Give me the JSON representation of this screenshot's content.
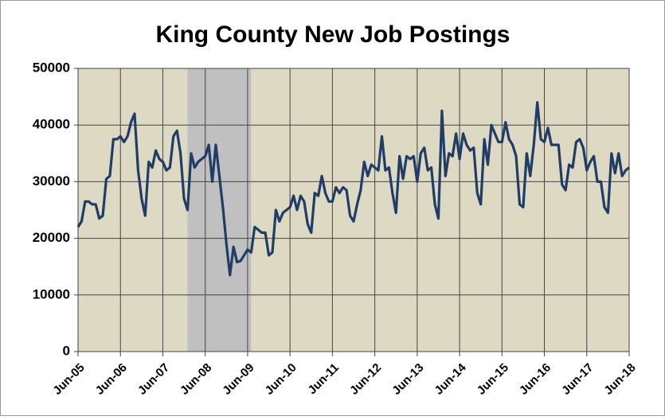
{
  "chart_data": {
    "type": "line",
    "title": "King County New Job Postings",
    "categories": [
      "Jun-05",
      null,
      null,
      null,
      null,
      null,
      null,
      null,
      null,
      null,
      null,
      null,
      "Jun-06",
      null,
      null,
      null,
      null,
      null,
      null,
      null,
      null,
      null,
      null,
      null,
      "Jun-07",
      null,
      null,
      null,
      null,
      null,
      null,
      null,
      null,
      null,
      null,
      null,
      "Jun-08",
      null,
      null,
      null,
      null,
      null,
      null,
      null,
      null,
      null,
      null,
      null,
      "Jun-09",
      null,
      null,
      null,
      null,
      null,
      null,
      null,
      null,
      null,
      null,
      null,
      "Jun-10",
      null,
      null,
      null,
      null,
      null,
      null,
      null,
      null,
      null,
      null,
      null,
      "Jun-11",
      null,
      null,
      null,
      null,
      null,
      null,
      null,
      null,
      null,
      null,
      null,
      "Jun-12",
      null,
      null,
      null,
      null,
      null,
      null,
      null,
      null,
      null,
      null,
      null,
      "Jun-13",
      null,
      null,
      null,
      null,
      null,
      null,
      null,
      null,
      null,
      null,
      null,
      "Jun-14",
      null,
      null,
      null,
      null,
      null,
      null,
      null,
      null,
      null,
      null,
      null,
      "Jun-15",
      null,
      null,
      null,
      null,
      null,
      null,
      null,
      null,
      null,
      null,
      null,
      "Jun-16",
      null,
      null,
      null,
      null,
      null,
      null,
      null,
      null,
      null,
      null,
      null,
      "Jun-17",
      null,
      null,
      null,
      null,
      null,
      null,
      null,
      null,
      null,
      null,
      null,
      "Jun-18"
    ],
    "series": [
      {
        "color": "#1f3d66",
        "values": [
          22000,
          23000,
          26500,
          26500,
          26000,
          26000,
          23500,
          24000,
          30500,
          31000,
          37500,
          37500,
          38000,
          37000,
          38000,
          40500,
          42000,
          32000,
          27000,
          24000,
          33500,
          32500,
          35500,
          34000,
          33500,
          32000,
          32500,
          38000,
          39000,
          35000,
          27000,
          25000,
          35000,
          32500,
          33500,
          34000,
          34500,
          36500,
          30000,
          36500,
          31000,
          25500,
          19000,
          13500,
          18500,
          15800,
          16000,
          17000,
          18000,
          17500,
          22000,
          21500,
          21000,
          21000,
          17000,
          17500,
          25000,
          23000,
          24500,
          25000,
          25500,
          27500,
          25000,
          27500,
          26500,
          22500,
          21000,
          28000,
          27500,
          31000,
          28000,
          26500,
          26500,
          29000,
          28000,
          29000,
          28500,
          24000,
          23000,
          26000,
          28500,
          33500,
          31000,
          33000,
          32500,
          32000,
          38000,
          32000,
          32500,
          28000,
          24500,
          34500,
          30500,
          34500,
          34000,
          34500,
          30000,
          35000,
          36000,
          32000,
          32500,
          26000,
          23500,
          42500,
          31000,
          35000,
          34500,
          38500,
          34000,
          38500,
          36500,
          35500,
          36000,
          28000,
          26000,
          37500,
          33000,
          40000,
          38500,
          37000,
          37000,
          40500,
          37500,
          36500,
          34500,
          26000,
          25500,
          35000,
          31000,
          36500,
          44000,
          37500,
          37000,
          39500,
          36500,
          36500,
          36500,
          29500,
          28500,
          33000,
          32500,
          37000,
          37500,
          36000,
          32000,
          33500,
          34500,
          30000,
          30000,
          25500,
          24500,
          35000,
          31500,
          35000,
          31000,
          32000,
          32500
        ]
      }
    ],
    "shade": {
      "from": 31,
      "to": 49,
      "color": "#c0c0c0"
    },
    "ylim": [
      0,
      50000
    ],
    "yticks": [
      0,
      10000,
      20000,
      30000,
      40000,
      50000
    ],
    "grid": true,
    "background": "#ddd9c3"
  }
}
